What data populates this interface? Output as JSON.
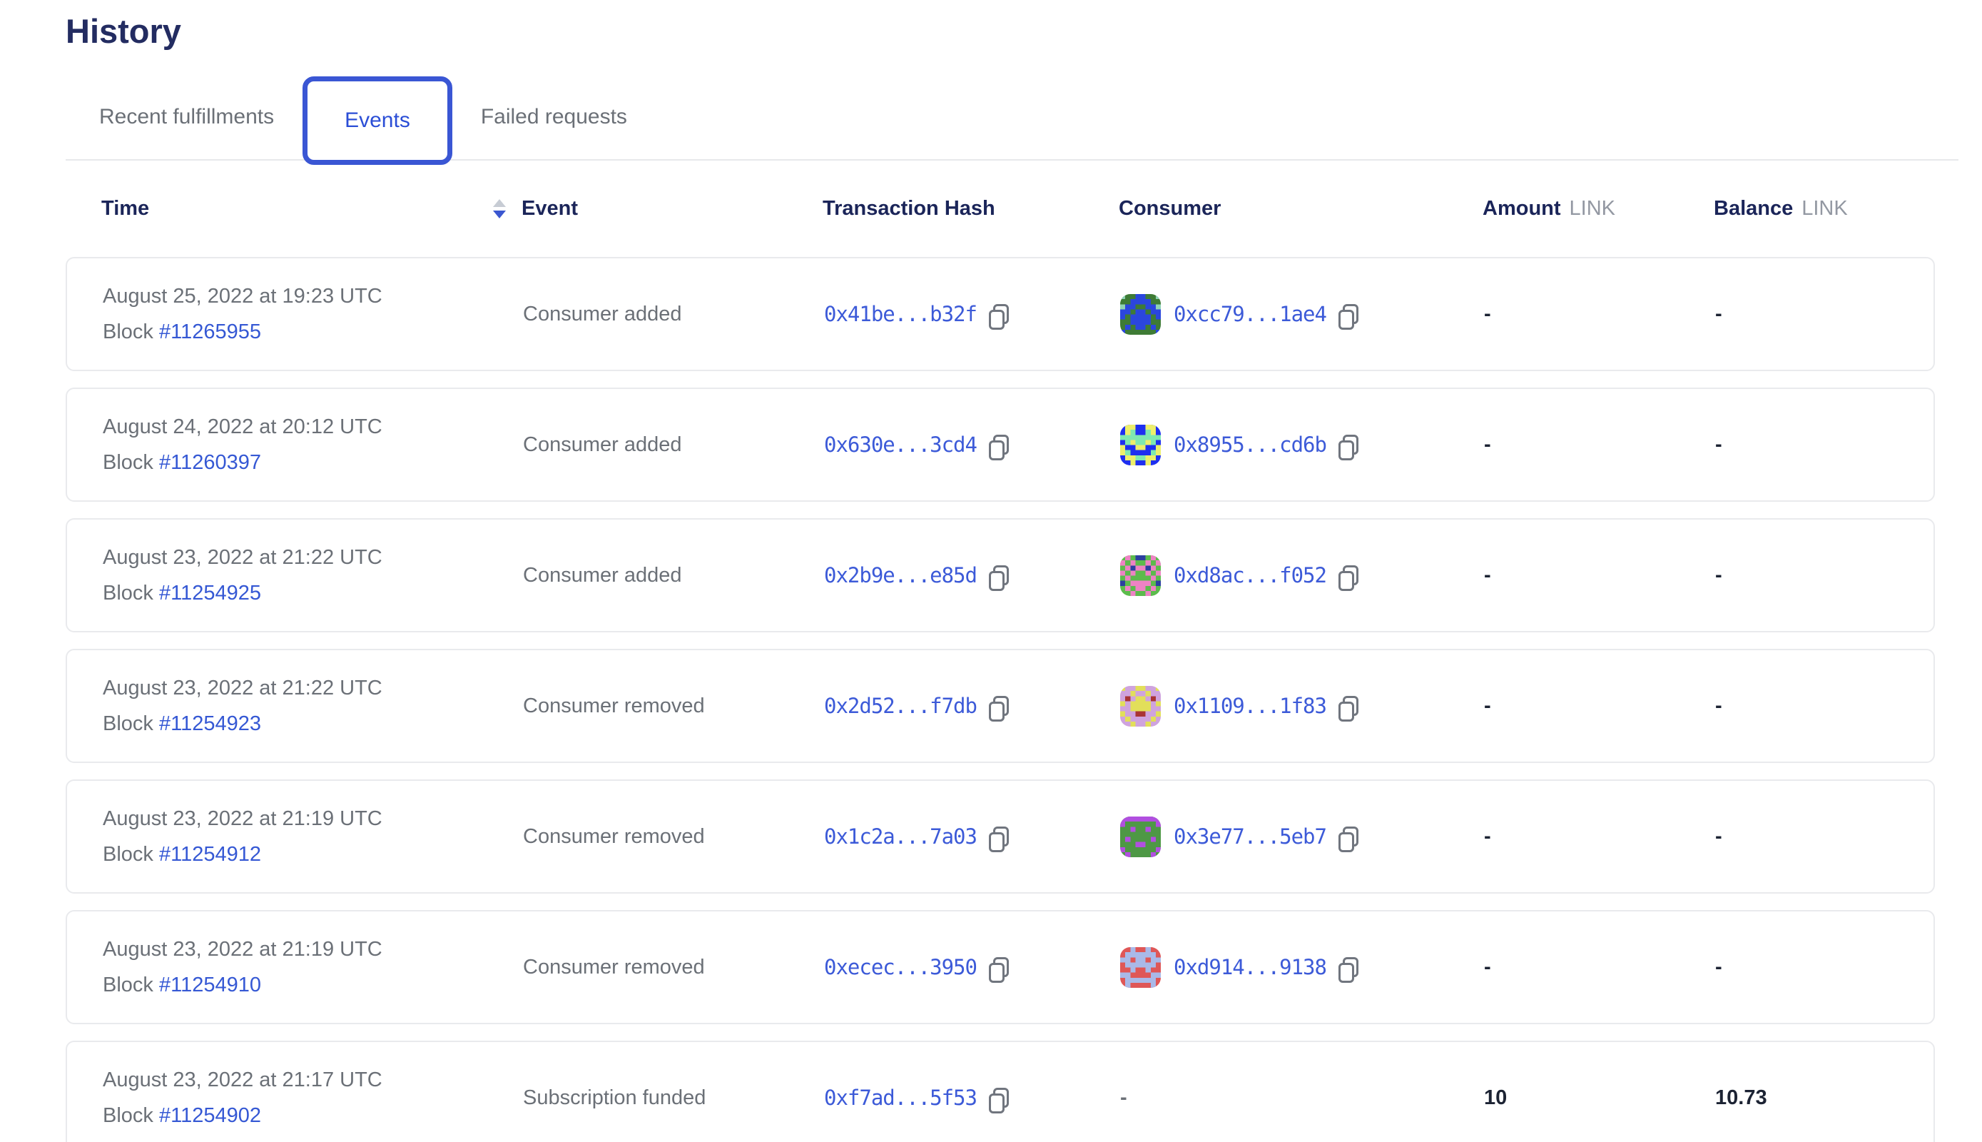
{
  "page": {
    "title": "History"
  },
  "tabs": [
    {
      "label": "Recent fulfillments",
      "active": false
    },
    {
      "label": "Events",
      "active": true
    },
    {
      "label": "Failed requests",
      "active": false
    }
  ],
  "table": {
    "columns": {
      "time": "Time",
      "event": "Event",
      "tx": "Transaction Hash",
      "consumer": "Consumer",
      "amount": "Amount",
      "balance": "Balance",
      "unit": "LINK"
    },
    "sort": {
      "column": "Time",
      "direction": "desc"
    },
    "rows": [
      {
        "date": "August 25, 2022 at 19:23 UTC",
        "block_label": "Block",
        "block": "#11265955",
        "event": "Consumer added",
        "tx": "0x41be...b32f",
        "consumer": "0xcc79...1ae4",
        "amount": "-",
        "balance": "-",
        "avatar": {
          "palette": {
            "bg": "#3E7B35",
            "c1": "#2B46DD",
            "c2": "#8FD3B4"
          },
          "grid": [
            "20011002",
            "00111100",
            "21100112",
            "11011011",
            "10111101",
            "00111100",
            "01011010",
            "10000001"
          ]
        }
      },
      {
        "date": "August 24, 2022 at 20:12 UTC",
        "block_label": "Block",
        "block": "#11260397",
        "event": "Consumer added",
        "tx": "0x630e...3cd4",
        "consumer": "0x8955...cd6b",
        "amount": "-",
        "balance": "-",
        "avatar": {
          "palette": {
            "bg": "#1E2FF0",
            "c1": "#EDEF6B",
            "c2": "#7FE9B0"
          },
          "grid": [
            "01100110",
            "01200210",
            "22222222",
            "02122120",
            "10011001",
            "12000021",
            "01122110",
            "00100100"
          ]
        }
      },
      {
        "date": "August 23, 2022 at 21:22 UTC",
        "block_label": "Block",
        "block": "#11254925",
        "event": "Consumer added",
        "tx": "0x2b9e...e85d",
        "consumer": "0xd8ac...f052",
        "amount": "-",
        "balance": "-",
        "avatar": {
          "palette": {
            "bg": "#5CBB4C",
            "c1": "#EE82C4",
            "c2": "#2C3FA0"
          },
          "grid": [
            "01022010",
            "10100101",
            "01211210",
            "10100101",
            "01000010",
            "20111102",
            "01011010",
            "00100100"
          ]
        }
      },
      {
        "date": "August 23, 2022 at 21:22 UTC",
        "block_label": "Block",
        "block": "#11254923",
        "event": "Consumer removed",
        "tx": "0x2d52...f7db",
        "consumer": "0x1109...1f83",
        "amount": "-",
        "balance": "-",
        "avatar": {
          "palette": {
            "bg": "#CFA3DE",
            "c1": "#E2DF5A",
            "c2": "#A93434"
          },
          "grid": [
            "10011001",
            "00100100",
            "02011020",
            "10111101",
            "00111100",
            "10022001",
            "01000010",
            "00100100"
          ]
        }
      },
      {
        "date": "August 23, 2022 at 21:19 UTC",
        "block_label": "Block",
        "block": "#11254912",
        "event": "Consumer removed",
        "tx": "0x1c2a...7a03",
        "consumer": "0x3e77...5eb7",
        "amount": "-",
        "balance": "-",
        "avatar": {
          "palette": {
            "bg": "#4E9845",
            "c1": "#B14FE0",
            "c2": "#3F7F38"
          },
          "grid": [
            "11111111",
            "10000001",
            "00100100",
            "00000000",
            "01000010",
            "00011000",
            "10000001",
            "01000010"
          ]
        }
      },
      {
        "date": "August 23, 2022 at 21:19 UTC",
        "block_label": "Block",
        "block": "#11254910",
        "event": "Consumer removed",
        "tx": "0xecec...3950",
        "consumer": "0xd914...9138",
        "amount": "-",
        "balance": "-",
        "avatar": {
          "palette": {
            "bg": "#DF5757",
            "c1": "#A9B9E8",
            "c2": "#C23B3B"
          },
          "grid": [
            "00100100",
            "01111110",
            "11011011",
            "01111110",
            "00100100",
            "11000011",
            "01111110",
            "01000010"
          ]
        }
      },
      {
        "date": "August 23, 2022 at 21:17 UTC",
        "block_label": "Block",
        "block": "#11254902",
        "event": "Subscription funded",
        "tx": "0xf7ad...5f53",
        "consumer": "-",
        "amount": "10",
        "balance": "10.73",
        "avatar": null
      }
    ]
  },
  "colors": {
    "heading_navy": "#232C61",
    "header_navy": "#1B2559",
    "text_gray": "#6B7077",
    "unit_gray": "#9398A2",
    "link_blue": "#3558D4",
    "hash_blue": "#3C5AD8",
    "active_tab_blue": "#2B4ED6",
    "active_tab_border": "#3A56D4",
    "card_border": "#E9EAED",
    "sort_active": "#3B57D0",
    "sort_inactive": "#C7CCD4",
    "value_dark": "#1C2333",
    "copy_icon_gray": "#70757E"
  }
}
